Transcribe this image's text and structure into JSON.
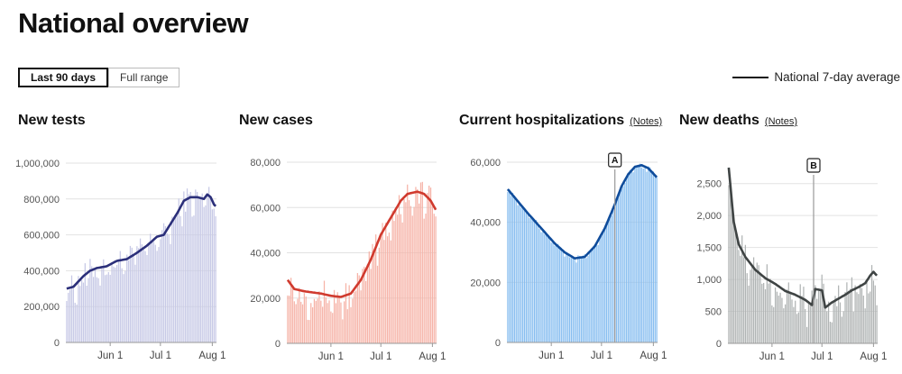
{
  "page": {
    "title": "National overview"
  },
  "range_toggle": {
    "options": [
      "Last 90 days",
      "Full range"
    ],
    "selected": "Last 90 days"
  },
  "legend": {
    "label": "National 7-day average",
    "color": "#111111"
  },
  "panels": [
    {
      "title": "New tests",
      "notes": ""
    },
    {
      "title": "New cases",
      "notes": ""
    },
    {
      "title": "Current hospitalizations",
      "notes": "(Notes)"
    },
    {
      "title": "New deaths",
      "notes": "(Notes)"
    }
  ],
  "chart_data": [
    {
      "type": "bar",
      "title": "New tests",
      "bar_color": "#c7c9e6",
      "line_color": "#2b2f7a",
      "ylim": [
        0,
        1000000
      ],
      "yticks": [
        0,
        200000,
        400000,
        600000,
        800000,
        1000000
      ],
      "ytick_labels": [
        "0",
        "200,000",
        "400,000",
        "600,000",
        "800,000",
        "1,000,000"
      ],
      "xticks": [
        "Jun 1",
        "Jul 1",
        "Aug 1"
      ],
      "xtick_days": [
        26,
        56,
        87
      ],
      "num_days": 90,
      "anchors": [
        [
          0,
          300000
        ],
        [
          4,
          310000
        ],
        [
          10,
          370000
        ],
        [
          14,
          400000
        ],
        [
          18,
          415000
        ],
        [
          24,
          425000
        ],
        [
          30,
          455000
        ],
        [
          36,
          465000
        ],
        [
          42,
          500000
        ],
        [
          48,
          540000
        ],
        [
          54,
          590000
        ],
        [
          58,
          600000
        ],
        [
          62,
          660000
        ],
        [
          66,
          720000
        ],
        [
          70,
          790000
        ],
        [
          74,
          810000
        ],
        [
          78,
          810000
        ],
        [
          82,
          800000
        ],
        [
          84,
          825000
        ],
        [
          86,
          810000
        ],
        [
          88,
          770000
        ],
        [
          89,
          760000
        ]
      ],
      "bar_noise": 70000
    },
    {
      "type": "bar",
      "title": "New cases",
      "bar_color": "#f6b3a7",
      "line_color": "#d03a2e",
      "ylim": [
        0,
        80000
      ],
      "yticks": [
        0,
        20000,
        40000,
        60000,
        80000
      ],
      "ytick_labels": [
        "0",
        "20,000",
        "40,000",
        "60,000",
        "80,000"
      ],
      "xticks": [
        "Jun 1",
        "Jul 1",
        "Aug 1"
      ],
      "xtick_days": [
        26,
        56,
        87
      ],
      "num_days": 90,
      "anchors": [
        [
          0,
          28000
        ],
        [
          4,
          24000
        ],
        [
          10,
          23000
        ],
        [
          20,
          22000
        ],
        [
          26,
          21000
        ],
        [
          32,
          20500
        ],
        [
          38,
          22000
        ],
        [
          44,
          28000
        ],
        [
          50,
          37000
        ],
        [
          56,
          48000
        ],
        [
          60,
          53000
        ],
        [
          64,
          58000
        ],
        [
          68,
          63000
        ],
        [
          72,
          66000
        ],
        [
          78,
          67000
        ],
        [
          82,
          66000
        ],
        [
          86,
          63000
        ],
        [
          89,
          59000
        ]
      ],
      "bar_noise": 7000
    },
    {
      "type": "bar",
      "title": "Current hospitalizations",
      "bar_color": "#86bdf0",
      "line_color": "#0f4c9b",
      "ylim": [
        0,
        60000
      ],
      "yticks": [
        0,
        20000,
        40000,
        60000
      ],
      "ytick_labels": [
        "0",
        "20,000",
        "40,000",
        "60,000"
      ],
      "xticks": [
        "Jun 1",
        "Jul 1",
        "Aug 1"
      ],
      "xtick_days": [
        26,
        56,
        87
      ],
      "num_days": 90,
      "anchors": [
        [
          0,
          51000
        ],
        [
          6,
          47000
        ],
        [
          12,
          43000
        ],
        [
          20,
          38000
        ],
        [
          28,
          33000
        ],
        [
          34,
          30000
        ],
        [
          40,
          28000
        ],
        [
          46,
          28500
        ],
        [
          52,
          32000
        ],
        [
          58,
          38000
        ],
        [
          64,
          46000
        ],
        [
          68,
          52000
        ],
        [
          72,
          56000
        ],
        [
          76,
          58500
        ],
        [
          80,
          59000
        ],
        [
          84,
          58000
        ],
        [
          89,
          55000
        ]
      ],
      "bar_noise": 900,
      "annotations": [
        {
          "label": "A",
          "day": 64
        }
      ]
    },
    {
      "type": "bar",
      "title": "New deaths",
      "bar_color": "#b0b4b4",
      "line_color": "#3f4444",
      "ylim": [
        0,
        2750
      ],
      "yticks": [
        500,
        1000,
        1500,
        2000,
        2500
      ],
      "ytick_labels": [
        "500",
        "1,000",
        "1,500",
        "2,000",
        "2,500"
      ],
      "xticks": [
        "Jun 1",
        "Jul 1",
        "Aug 1"
      ],
      "xtick_days": [
        26,
        56,
        87
      ],
      "num_days": 90,
      "anchors": [
        [
          0,
          2750
        ],
        [
          3,
          1900
        ],
        [
          6,
          1550
        ],
        [
          10,
          1350
        ],
        [
          16,
          1150
        ],
        [
          22,
          1020
        ],
        [
          28,
          930
        ],
        [
          34,
          820
        ],
        [
          40,
          760
        ],
        [
          46,
          680
        ],
        [
          50,
          600
        ],
        [
          52,
          850
        ],
        [
          56,
          830
        ],
        [
          58,
          560
        ],
        [
          62,
          640
        ],
        [
          66,
          700
        ],
        [
          70,
          760
        ],
        [
          74,
          830
        ],
        [
          78,
          880
        ],
        [
          82,
          940
        ],
        [
          85,
          1060
        ],
        [
          87,
          1120
        ],
        [
          89,
          1060
        ]
      ],
      "bar_noise": 280,
      "annotations": [
        {
          "label": "B",
          "day": 51
        }
      ]
    }
  ]
}
